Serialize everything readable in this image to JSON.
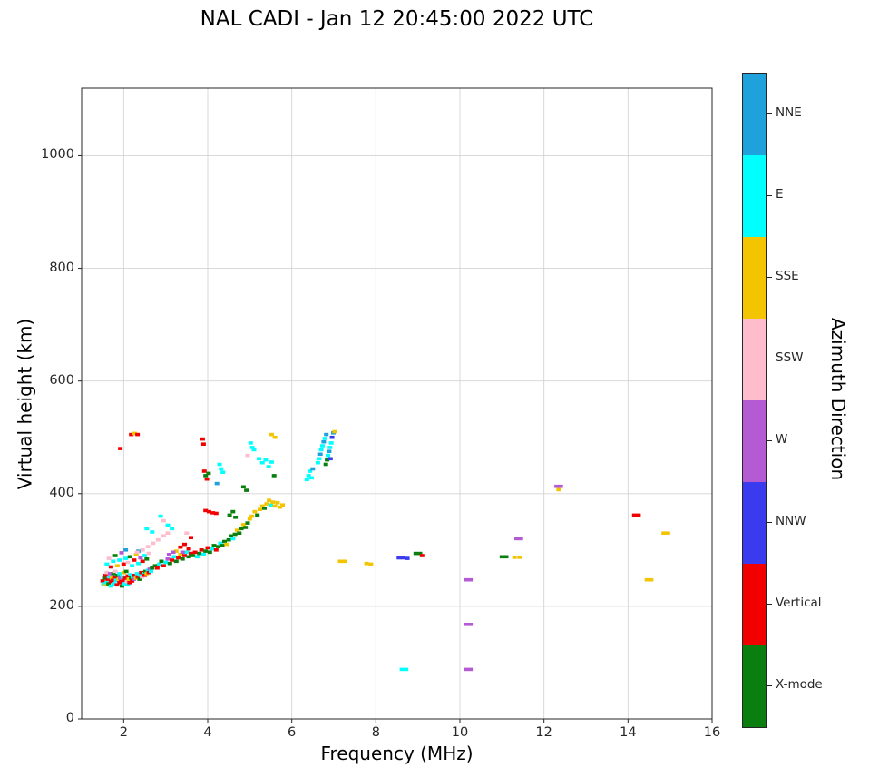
{
  "chart_data": {
    "type": "scatter",
    "title": "NAL CADI - Jan 12 20:45:00 2022 UTC",
    "xlabel": "Frequency (MHz)",
    "ylabel": "Virtual height (km)",
    "xlim": [
      1,
      16
    ],
    "ylim": [
      0,
      1120
    ],
    "xticks": [
      2,
      4,
      6,
      8,
      10,
      12,
      14,
      16
    ],
    "yticks": [
      0,
      200,
      400,
      600,
      800,
      1000
    ],
    "grid": true,
    "grid_color": "#d4d4d4",
    "frame_color": "#262626",
    "colorbar": {
      "label": "Azimuth Direction",
      "position": "right",
      "categories_top_to_bottom": [
        {
          "name": "NNE",
          "color": "#1fa2dc"
        },
        {
          "name": "E",
          "color": "#00ffff"
        },
        {
          "name": "SSE",
          "color": "#f2c500"
        },
        {
          "name": "SSW",
          "color": "#ffbccd"
        },
        {
          "name": "W",
          "color": "#b45ad2"
        },
        {
          "name": "NNW",
          "color": "#3a3aee"
        },
        {
          "name": "Vertical",
          "color": "#f20000"
        },
        {
          "name": "X-mode",
          "color": "#0a7f0f"
        }
      ]
    },
    "point_fields": [
      "frequency_mhz",
      "virtual_height_km",
      "category_index"
    ],
    "points": [
      [
        1.5,
        245,
        6
      ],
      [
        1.52,
        240,
        1
      ],
      [
        1.54,
        250,
        7
      ],
      [
        1.55,
        238,
        2
      ],
      [
        1.57,
        255,
        6
      ],
      [
        1.6,
        242,
        1
      ],
      [
        1.6,
        260,
        3
      ],
      [
        1.62,
        248,
        6
      ],
      [
        1.64,
        240,
        7
      ],
      [
        1.66,
        252,
        1
      ],
      [
        1.68,
        258,
        4
      ],
      [
        1.7,
        244,
        6
      ],
      [
        1.7,
        236,
        1
      ],
      [
        1.72,
        250,
        2
      ],
      [
        1.74,
        246,
        6
      ],
      [
        1.76,
        258,
        7
      ],
      [
        1.78,
        240,
        1
      ],
      [
        1.8,
        252,
        6
      ],
      [
        1.8,
        262,
        3
      ],
      [
        1.82,
        246,
        1
      ],
      [
        1.84,
        238,
        6
      ],
      [
        1.86,
        255,
        7
      ],
      [
        1.88,
        248,
        2
      ],
      [
        1.9,
        242,
        6
      ],
      [
        1.9,
        258,
        1
      ],
      [
        1.92,
        250,
        4
      ],
      [
        1.94,
        244,
        6
      ],
      [
        1.96,
        236,
        7
      ],
      [
        1.98,
        252,
        1
      ],
      [
        2.0,
        246,
        6
      ],
      [
        2.0,
        260,
        2
      ],
      [
        2.02,
        240,
        1
      ],
      [
        2.04,
        250,
        6
      ],
      [
        2.06,
        262,
        7
      ],
      [
        2.08,
        244,
        3
      ],
      [
        2.1,
        254,
        6
      ],
      [
        2.1,
        238,
        1
      ],
      [
        2.12,
        248,
        2
      ],
      [
        2.14,
        242,
        6
      ],
      [
        2.16,
        256,
        1
      ],
      [
        2.18,
        250,
        7
      ],
      [
        2.2,
        245,
        6
      ],
      [
        2.22,
        252,
        1
      ],
      [
        2.24,
        248,
        4
      ],
      [
        2.26,
        255,
        6
      ],
      [
        2.3,
        250,
        2
      ],
      [
        2.32,
        258,
        1
      ],
      [
        2.34,
        252,
        6
      ],
      [
        2.38,
        248,
        7
      ],
      [
        2.4,
        255,
        1
      ],
      [
        2.42,
        260,
        6
      ],
      [
        2.44,
        252,
        3
      ],
      [
        2.48,
        258,
        1
      ],
      [
        2.5,
        255,
        6
      ],
      [
        2.52,
        262,
        7
      ],
      [
        2.55,
        258,
        2
      ],
      [
        2.58,
        264,
        1
      ],
      [
        2.6,
        260,
        6
      ],
      [
        2.62,
        266,
        4
      ],
      [
        2.65,
        262,
        1
      ],
      [
        2.68,
        268,
        7
      ],
      [
        1.6,
        275,
        1
      ],
      [
        1.65,
        285,
        3
      ],
      [
        1.7,
        270,
        6
      ],
      [
        1.75,
        280,
        1
      ],
      [
        1.8,
        290,
        7
      ],
      [
        1.85,
        272,
        2
      ],
      [
        1.9,
        282,
        1
      ],
      [
        1.95,
        295,
        4
      ],
      [
        2.0,
        275,
        6
      ],
      [
        2.05,
        285,
        1
      ],
      [
        2.1,
        278,
        3
      ],
      [
        2.15,
        288,
        7
      ],
      [
        2.2,
        272,
        1
      ],
      [
        2.25,
        282,
        6
      ],
      [
        2.3,
        292,
        2
      ],
      [
        2.35,
        276,
        1
      ],
      [
        2.4,
        286,
        4
      ],
      [
        2.45,
        280,
        6
      ],
      [
        2.5,
        290,
        1
      ],
      [
        2.55,
        284,
        7
      ],
      [
        2.6,
        294,
        3
      ],
      [
        2.05,
        300,
        0
      ],
      [
        2.35,
        298,
        0
      ],
      [
        2.32,
        296,
        3
      ],
      [
        2.45,
        300,
        3
      ],
      [
        2.58,
        306,
        3
      ],
      [
        2.7,
        312,
        3
      ],
      [
        2.82,
        318,
        3
      ],
      [
        2.95,
        325,
        3
      ],
      [
        3.05,
        330,
        3
      ],
      [
        2.55,
        338,
        1
      ],
      [
        2.68,
        332,
        1
      ],
      [
        2.88,
        360,
        1
      ],
      [
        2.95,
        352,
        3
      ],
      [
        3.05,
        344,
        1
      ],
      [
        3.15,
        338,
        1
      ],
      [
        2.75,
        272,
        7
      ],
      [
        2.8,
        268,
        6
      ],
      [
        2.85,
        275,
        1
      ],
      [
        2.9,
        280,
        7
      ],
      [
        2.95,
        272,
        6
      ],
      [
        3.0,
        278,
        1
      ],
      [
        3.05,
        284,
        4
      ],
      [
        3.1,
        276,
        7
      ],
      [
        3.15,
        282,
        6
      ],
      [
        3.2,
        288,
        1
      ],
      [
        3.25,
        280,
        7
      ],
      [
        3.3,
        286,
        6
      ],
      [
        3.35,
        292,
        2
      ],
      [
        3.4,
        284,
        7
      ],
      [
        3.45,
        290,
        6
      ],
      [
        3.5,
        296,
        1
      ],
      [
        3.55,
        288,
        7
      ],
      [
        3.6,
        294,
        6
      ],
      [
        3.25,
        298,
        2
      ],
      [
        3.4,
        296,
        4
      ],
      [
        3.35,
        305,
        6
      ],
      [
        3.45,
        310,
        6
      ],
      [
        3.55,
        302,
        6
      ],
      [
        3.08,
        292,
        4
      ],
      [
        3.18,
        296,
        4
      ],
      [
        3.6,
        322,
        6
      ],
      [
        3.5,
        330,
        3
      ],
      [
        3.65,
        290,
        7
      ],
      [
        3.7,
        296,
        6
      ],
      [
        3.75,
        288,
        1
      ],
      [
        3.8,
        294,
        7
      ],
      [
        3.85,
        300,
        6
      ],
      [
        3.9,
        292,
        1
      ],
      [
        3.95,
        298,
        7
      ],
      [
        4.0,
        304,
        6
      ],
      [
        4.05,
        296,
        7
      ],
      [
        4.1,
        302,
        1
      ],
      [
        4.15,
        308,
        7
      ],
      [
        4.2,
        300,
        6
      ],
      [
        4.25,
        306,
        7
      ],
      [
        4.3,
        312,
        1
      ],
      [
        3.95,
        370,
        6
      ],
      [
        4.03,
        368,
        6
      ],
      [
        4.12,
        366,
        6
      ],
      [
        4.2,
        365,
        6
      ],
      [
        3.92,
        440,
        6
      ],
      [
        3.95,
        432,
        7
      ],
      [
        3.98,
        426,
        6
      ],
      [
        4.02,
        436,
        7
      ],
      [
        3.88,
        497,
        6
      ],
      [
        3.9,
        488,
        6
      ],
      [
        4.28,
        452,
        1
      ],
      [
        4.32,
        444,
        1
      ],
      [
        4.36,
        438,
        1
      ],
      [
        4.22,
        418,
        0
      ],
      [
        4.35,
        308,
        7
      ],
      [
        4.4,
        315,
        7
      ],
      [
        4.45,
        310,
        2
      ],
      [
        4.5,
        318,
        7
      ],
      [
        4.55,
        325,
        7
      ],
      [
        4.6,
        320,
        1
      ],
      [
        4.65,
        328,
        7
      ],
      [
        4.7,
        335,
        2
      ],
      [
        4.75,
        330,
        7
      ],
      [
        4.8,
        338,
        7
      ],
      [
        4.85,
        345,
        2
      ],
      [
        4.9,
        340,
        7
      ],
      [
        4.95,
        348,
        7
      ],
      [
        5.0,
        355,
        2
      ],
      [
        4.52,
        362,
        7
      ],
      [
        4.6,
        368,
        7
      ],
      [
        4.66,
        358,
        7
      ],
      [
        4.85,
        412,
        7
      ],
      [
        4.92,
        406,
        7
      ],
      [
        4.95,
        468,
        3
      ],
      [
        5.02,
        490,
        1
      ],
      [
        5.06,
        482,
        1
      ],
      [
        5.1,
        478,
        1
      ],
      [
        5.05,
        360,
        2
      ],
      [
        5.12,
        368,
        2
      ],
      [
        5.18,
        362,
        7
      ],
      [
        5.24,
        372,
        2
      ],
      [
        5.3,
        378,
        2
      ],
      [
        5.35,
        374,
        7
      ],
      [
        5.4,
        382,
        2
      ],
      [
        5.46,
        388,
        2
      ],
      [
        5.5,
        380,
        1
      ],
      [
        5.55,
        385,
        2
      ],
      [
        5.6,
        378,
        2
      ],
      [
        5.66,
        384,
        2
      ],
      [
        5.72,
        376,
        2
      ],
      [
        5.78,
        380,
        2
      ],
      [
        5.22,
        462,
        1
      ],
      [
        5.3,
        455,
        1
      ],
      [
        5.38,
        460,
        1
      ],
      [
        5.45,
        448,
        1
      ],
      [
        5.52,
        456,
        1
      ],
      [
        5.52,
        505,
        2
      ],
      [
        5.6,
        500,
        2
      ],
      [
        5.58,
        432,
        7
      ],
      [
        6.36,
        425,
        1
      ],
      [
        6.4,
        432,
        1
      ],
      [
        6.43,
        440,
        1
      ],
      [
        6.47,
        428,
        1
      ],
      [
        6.5,
        444,
        0
      ],
      [
        6.62,
        455,
        1
      ],
      [
        6.65,
        462,
        1
      ],
      [
        6.68,
        470,
        0
      ],
      [
        6.7,
        478,
        1
      ],
      [
        6.73,
        485,
        1
      ],
      [
        6.76,
        492,
        0
      ],
      [
        6.79,
        498,
        1
      ],
      [
        6.82,
        505,
        0
      ],
      [
        6.84,
        460,
        7
      ],
      [
        6.86,
        468,
        1
      ],
      [
        6.89,
        475,
        0
      ],
      [
        6.91,
        482,
        1
      ],
      [
        6.94,
        490,
        1
      ],
      [
        6.96,
        500,
        5
      ],
      [
        6.99,
        508,
        0
      ],
      [
        7.02,
        510,
        2
      ],
      [
        6.81,
        452,
        7
      ],
      [
        6.92,
        462,
        5
      ],
      [
        1.92,
        480,
        6
      ],
      [
        2.18,
        505,
        6
      ],
      [
        2.26,
        507,
        2
      ],
      [
        2.33,
        505,
        6
      ],
      [
        7.15,
        280,
        2
      ],
      [
        7.25,
        280,
        2
      ],
      [
        7.78,
        276,
        2
      ],
      [
        7.88,
        275,
        2
      ],
      [
        8.55,
        286,
        5
      ],
      [
        8.65,
        286,
        5
      ],
      [
        8.75,
        285,
        5
      ],
      [
        8.95,
        294,
        7
      ],
      [
        9.05,
        294,
        7
      ],
      [
        9.1,
        290,
        6
      ],
      [
        8.62,
        88,
        1
      ],
      [
        8.72,
        88,
        1
      ],
      [
        10.15,
        247,
        4
      ],
      [
        10.25,
        247,
        4
      ],
      [
        10.15,
        168,
        4
      ],
      [
        10.25,
        168,
        4
      ],
      [
        10.15,
        88,
        4
      ],
      [
        10.25,
        88,
        4
      ],
      [
        11.0,
        288,
        7
      ],
      [
        11.1,
        288,
        7
      ],
      [
        11.3,
        287,
        2
      ],
      [
        11.42,
        287,
        2
      ],
      [
        11.35,
        320,
        4
      ],
      [
        11.45,
        320,
        4
      ],
      [
        12.3,
        413,
        4
      ],
      [
        12.4,
        413,
        4
      ],
      [
        12.35,
        407,
        2
      ],
      [
        14.15,
        362,
        6
      ],
      [
        14.25,
        362,
        6
      ],
      [
        14.85,
        330,
        2
      ],
      [
        14.95,
        330,
        2
      ],
      [
        14.45,
        247,
        2
      ],
      [
        14.55,
        247,
        2
      ]
    ]
  }
}
